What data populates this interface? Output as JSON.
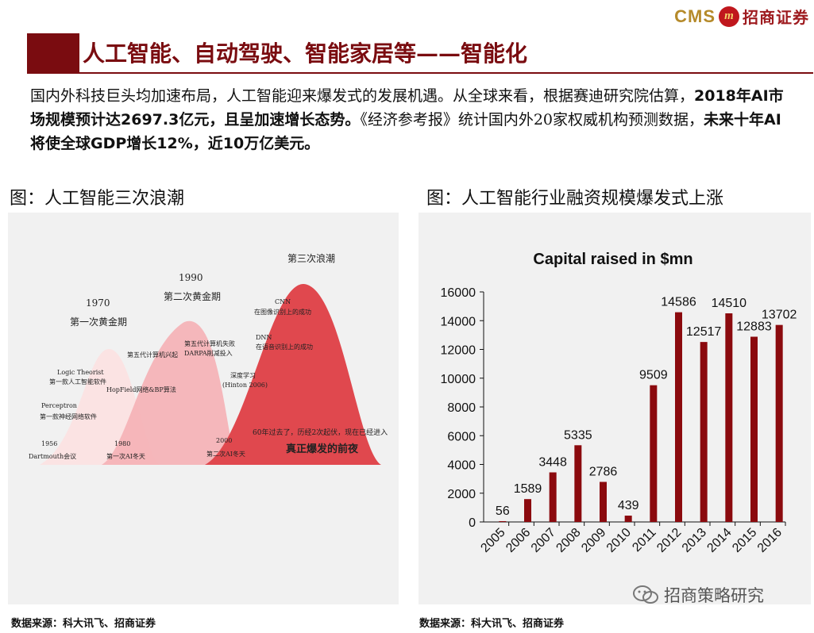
{
  "header": {
    "logo_text": "CMS",
    "logo_glyph": "m",
    "logo_cn": "招商证券",
    "title": "人工智能、自动驾驶、智能家居等——智能化"
  },
  "intro": {
    "p1": "国内外科技巨头均加速布局，人工智能迎来爆发式的发展机遇。从全球来看，根据赛迪研究院估算，",
    "b1": "2018年AI市场规模预计达2697.3亿元，且呈加速增长态势。",
    "p2": "《经济参考报》统计国内外20家权威机构预测数据，",
    "b2": "未来十年AI将使全球GDP增长12%，近10万亿美元。"
  },
  "left": {
    "subtitle": "图：人工智能三次浪潮",
    "source": "数据来源：科大讯飞、招商证券",
    "labels": {
      "w3": "第三次浪潮",
      "y1990": "1990",
      "gold2": "第二次黄金期",
      "y1970": "1970",
      "gold1": "第一次黄金期",
      "cnn1": "CNN",
      "cnn2": "在图像识别上的成功",
      "gen5a": "第五代计算机失败",
      "gen5b": "DARPA削减投入",
      "dnn1": "DNN",
      "dnn2": "在语音识别上的成功",
      "gen5": "第五代计算机兴起",
      "lt1": "Logic Theorist",
      "lt2": "第一款人工智能软件",
      "hop": "HopField网络&BP算法",
      "dl1": "深度学习",
      "dl2": "(Hinton 2006)",
      "pc1": "Perceptron",
      "pc2": "第一款神经网络软件",
      "y2000": "2000",
      "w2": "第二次AI冬天",
      "sixty": "60年过去了，历经2次起伏，现在已经进入",
      "eve": "真正爆发的前夜",
      "y1956": "1956",
      "dart": "Dartmouth会议",
      "y1980": "1980",
      "w1": "第一次AI冬天"
    }
  },
  "right": {
    "subtitle": "图：人工智能行业融资规模爆发式上涨",
    "source": "数据来源：科大讯飞、招商证券"
  },
  "watermark": "招商策略研究",
  "colors": {
    "brand": "#7a0c10",
    "bar": "#8b0a0e",
    "wave1": "#fbe3e3",
    "wave2": "#f5b0b5",
    "wave3": "#e0484e"
  },
  "chart_data": {
    "type": "bar",
    "title": "Capital raised in $mn",
    "categories": [
      "2005",
      "2006",
      "2007",
      "2008",
      "2009",
      "2010",
      "2011",
      "2012",
      "2013",
      "2014",
      "2015",
      "2016"
    ],
    "values": [
      56,
      1589,
      3448,
      5335,
      2786,
      439,
      9509,
      14586,
      12517,
      14510,
      12883,
      13702
    ],
    "yticks": [
      0,
      2000,
      4000,
      6000,
      8000,
      10000,
      12000,
      14000,
      16000
    ],
    "ylim": [
      0,
      16000
    ],
    "xlabel": "",
    "ylabel": "",
    "grid": false,
    "legend": "none"
  }
}
